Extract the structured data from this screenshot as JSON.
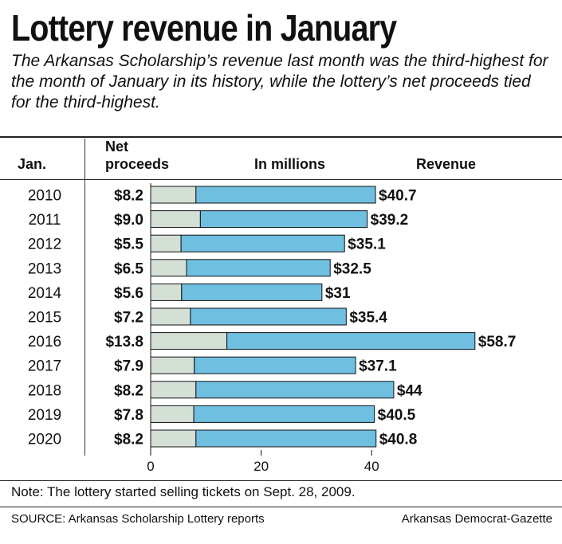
{
  "title": "Lottery revenue in January",
  "subtitle": "The Arkansas Scholarship’s revenue last month was the third-highest for the month of January in its history, while the lottery’s net proceeds tied for the third-highest.",
  "headers": {
    "year": "Jan.",
    "net_line1": "Net",
    "net_line2": "proceeds",
    "units": "In millions",
    "revenue": "Revenue"
  },
  "note": "Note: The lottery started selling tickets on Sept. 28, 2009.",
  "source": "SOURCE: Arkansas Scholarship Lottery reports",
  "credit": "Arkansas Democrat-Gazette",
  "chart_data": {
    "type": "bar",
    "orientation": "horizontal",
    "categories": [
      "2010",
      "2011",
      "2012",
      "2013",
      "2014",
      "2015",
      "2016",
      "2017",
      "2018",
      "2019",
      "2020"
    ],
    "series": [
      {
        "name": "Net proceeds",
        "values": [
          8.2,
          9.0,
          5.5,
          6.5,
          5.6,
          7.2,
          13.8,
          7.9,
          8.2,
          7.8,
          8.2
        ],
        "labels": [
          "$8.2",
          "$9.0",
          "$5.5",
          "$6.5",
          "$5.6",
          "$7.2",
          "$13.8",
          "$7.9",
          "$8.2",
          "$7.8",
          "$8.2"
        ]
      },
      {
        "name": "Revenue",
        "values": [
          40.7,
          39.2,
          35.1,
          32.5,
          31,
          35.4,
          58.7,
          37.1,
          44,
          40.5,
          40.8
        ],
        "labels": [
          "$40.7",
          "$39.2",
          "$35.1",
          "$32.5",
          "$31",
          "$35.4",
          "$58.7",
          "$37.1",
          "$44",
          "$40.5",
          "$40.8"
        ]
      }
    ],
    "xticks": [
      0,
      20,
      40
    ],
    "xlim": [
      0,
      60
    ],
    "colors": {
      "net_proceeds": "#d4dfd6",
      "revenue": "#6fbfe0",
      "stroke": "#111111"
    },
    "grid": false
  }
}
